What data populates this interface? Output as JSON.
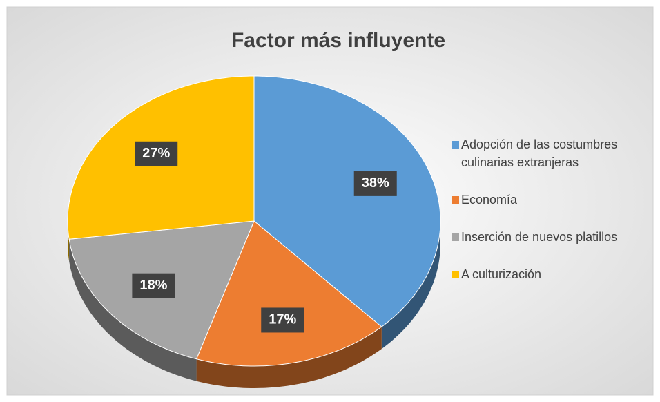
{
  "chart_data": {
    "type": "pie",
    "title": "Factor más influyente",
    "categories": [
      "Adopción de las costumbres culinarias extranjeras",
      "Economía",
      "Inserción de nuevos platillos",
      "A culturización"
    ],
    "values": [
      38,
      17,
      18,
      27
    ],
    "value_labels": [
      "38%",
      "17%",
      "18%",
      "27%"
    ],
    "colors": [
      "#5b9bd5",
      "#ed7d31",
      "#a5a5a5",
      "#ffc000"
    ],
    "legend": "right"
  }
}
